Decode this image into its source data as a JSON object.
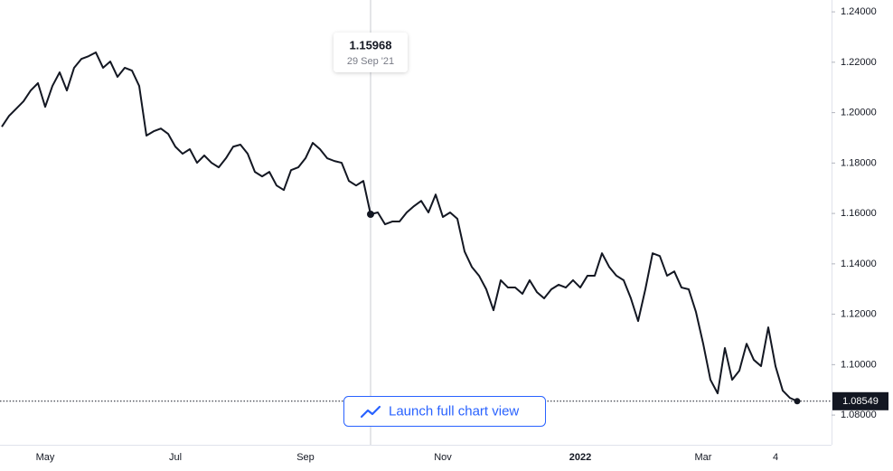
{
  "chart_data": {
    "type": "line",
    "categories": [
      null,
      null,
      null,
      null,
      null,
      null,
      "May",
      null,
      null,
      null,
      null,
      null,
      null,
      null,
      null,
      null,
      null,
      null,
      null,
      null,
      null,
      null,
      null,
      null,
      "Jul",
      null,
      null,
      null,
      null,
      null,
      null,
      null,
      null,
      null,
      null,
      null,
      null,
      null,
      null,
      null,
      null,
      null,
      "Sep",
      null,
      null,
      null,
      null,
      null,
      null,
      null,
      null,
      null,
      null,
      null,
      null,
      null,
      null,
      null,
      null,
      null,
      null,
      "Nov",
      null,
      null,
      null,
      null,
      null,
      null,
      null,
      null,
      null,
      null,
      null,
      null,
      null,
      null,
      null,
      null,
      null,
      null,
      "2022",
      null,
      null,
      null,
      null,
      null,
      null,
      null,
      null,
      null,
      null,
      null,
      null,
      null,
      null,
      null,
      null,
      "Mar",
      null,
      null,
      null,
      null,
      null,
      null,
      null,
      null,
      null,
      "4",
      null,
      null,
      null
    ],
    "values": [
      1.1944,
      1.1987,
      1.2016,
      1.2045,
      1.2088,
      1.2117,
      1.2023,
      1.2106,
      1.216,
      1.2088,
      1.2178,
      1.2213,
      1.2224,
      1.2239,
      1.2178,
      1.2203,
      1.2142,
      1.2178,
      1.2167,
      1.2106,
      1.1909,
      1.1926,
      1.1937,
      1.1916,
      1.1865,
      1.1837,
      1.1855,
      1.1801,
      1.183,
      1.1801,
      1.1783,
      1.1819,
      1.1865,
      1.1873,
      1.1837,
      1.1765,
      1.1747,
      1.1765,
      1.1711,
      1.1693,
      1.1772,
      1.1783,
      1.1819,
      1.188,
      1.1855,
      1.1819,
      1.1808,
      1.1801,
      1.1729,
      1.1711,
      1.1729,
      1.15968,
      1.1604,
      1.1557,
      1.1568,
      1.1568,
      1.1604,
      1.1629,
      1.165,
      1.1604,
      1.1675,
      1.1586,
      1.1604,
      1.1579,
      1.1449,
      1.1388,
      1.1353,
      1.1299,
      1.1216,
      1.1335,
      1.1306,
      1.1306,
      1.1281,
      1.1335,
      1.1288,
      1.1263,
      1.1299,
      1.1317,
      1.1306,
      1.1335,
      1.1306,
      1.1353,
      1.1353,
      1.1442,
      1.1388,
      1.1353,
      1.1335,
      1.1263,
      1.1173,
      1.1299,
      1.1442,
      1.1431,
      1.1353,
      1.137,
      1.1306,
      1.1299,
      1.1209,
      1.1083,
      1.094,
      1.0886,
      1.1066,
      1.094,
      1.0976,
      1.1083,
      1.1019,
      1.0994,
      1.1148,
      1.0994,
      1.0897,
      1.0868,
      1.08549
    ],
    "color": "#131722",
    "ylim": [
      1.0682,
      1.2447
    ],
    "yticks": [
      {
        "value": 1.08,
        "label": "1.08000"
      },
      {
        "value": 1.1,
        "label": "1.10000"
      },
      {
        "value": 1.12,
        "label": "1.12000"
      },
      {
        "value": 1.14,
        "label": "1.14000"
      },
      {
        "value": 1.16,
        "label": "1.16000"
      },
      {
        "value": 1.18,
        "label": "1.18000"
      },
      {
        "value": 1.2,
        "label": "1.20000"
      },
      {
        "value": 1.22,
        "label": "1.22000"
      },
      {
        "value": 1.24,
        "label": "1.24000"
      }
    ],
    "grid": false,
    "tooltip_date": "29 Sep '21",
    "button_label": "Launch full chart view"
  }
}
